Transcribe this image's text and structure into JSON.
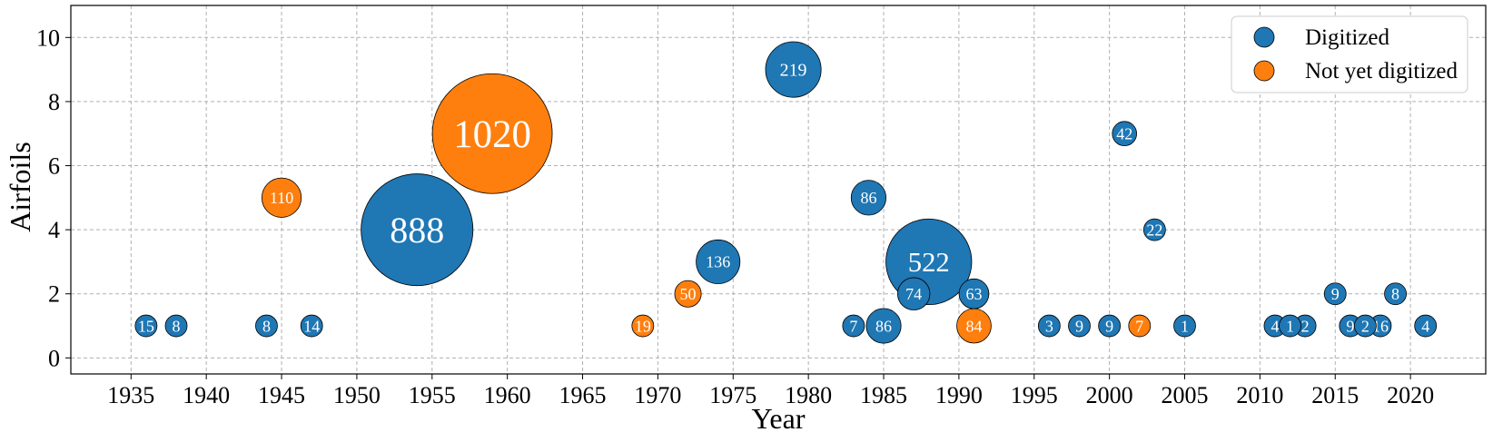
{
  "chart_data": {
    "type": "scatter",
    "title": "",
    "xlabel": "Year",
    "ylabel": "Airfoils",
    "xlim": [
      1931,
      2025
    ],
    "ylim": [
      -0.5,
      11
    ],
    "xticks": [
      1935,
      1940,
      1945,
      1950,
      1955,
      1960,
      1965,
      1970,
      1975,
      1980,
      1985,
      1990,
      1995,
      2000,
      2005,
      2010,
      2015,
      2020
    ],
    "yticks": [
      0,
      2,
      4,
      6,
      8,
      10
    ],
    "grid": true,
    "legend_position": "top-right",
    "series": [
      {
        "name": "Digitized",
        "color": "#1f77b4",
        "points": [
          {
            "x": 1936,
            "y": 1,
            "size": 15
          },
          {
            "x": 1938,
            "y": 1,
            "size": 8
          },
          {
            "x": 1944,
            "y": 1,
            "size": 8
          },
          {
            "x": 1947,
            "y": 1,
            "size": 14
          },
          {
            "x": 1954,
            "y": 4,
            "size": 888
          },
          {
            "x": 1974,
            "y": 3,
            "size": 136
          },
          {
            "x": 1979,
            "y": 9,
            "size": 219
          },
          {
            "x": 1983,
            "y": 1,
            "size": 7
          },
          {
            "x": 1984,
            "y": 5,
            "size": 86
          },
          {
            "x": 1985,
            "y": 1,
            "size": 86
          },
          {
            "x": 1988,
            "y": 3,
            "size": 522
          },
          {
            "x": 1987,
            "y": 2,
            "size": 74
          },
          {
            "x": 1991,
            "y": 2,
            "size": 63
          },
          {
            "x": 1996,
            "y": 1,
            "size": 3
          },
          {
            "x": 1998,
            "y": 1,
            "size": 9
          },
          {
            "x": 2000,
            "y": 1,
            "size": 9
          },
          {
            "x": 2001,
            "y": 7,
            "size": 42
          },
          {
            "x": 2003,
            "y": 4,
            "size": 22
          },
          {
            "x": 2005,
            "y": 1,
            "size": 1
          },
          {
            "x": 2011,
            "y": 1,
            "size": 4
          },
          {
            "x": 2012,
            "y": 1,
            "size": 1
          },
          {
            "x": 2013,
            "y": 1,
            "size": 2
          },
          {
            "x": 2015,
            "y": 2,
            "size": 9
          },
          {
            "x": 2016,
            "y": 1,
            "size": 9
          },
          {
            "x": 2017,
            "y": 1,
            "size": 2
          },
          {
            "x": 2018,
            "y": 1,
            "size": 16
          },
          {
            "x": 2019,
            "y": 2,
            "size": 8
          },
          {
            "x": 2021,
            "y": 1,
            "size": 4
          }
        ]
      },
      {
        "name": "Not yet digitized",
        "color": "#ff7f0e",
        "points": [
          {
            "x": 1945,
            "y": 5,
            "size": 110
          },
          {
            "x": 1959,
            "y": 7,
            "size": 1020
          },
          {
            "x": 1969,
            "y": 1,
            "size": 19
          },
          {
            "x": 1972,
            "y": 2,
            "size": 50
          },
          {
            "x": 1991,
            "y": 1,
            "size": 84
          },
          {
            "x": 2002,
            "y": 1,
            "size": 7
          }
        ]
      }
    ]
  }
}
